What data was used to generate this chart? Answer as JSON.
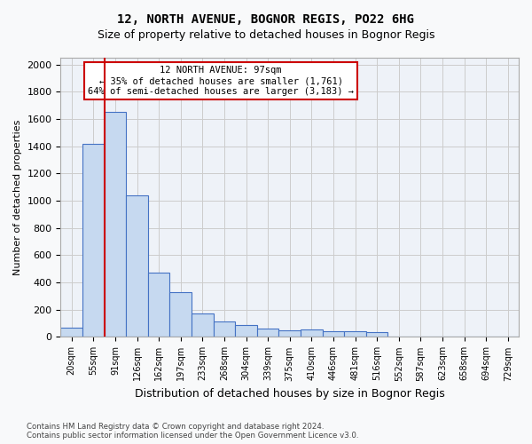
{
  "title_line1": "12, NORTH AVENUE, BOGNOR REGIS, PO22 6HG",
  "title_line2": "Size of property relative to detached houses in Bognor Regis",
  "xlabel": "Distribution of detached houses by size in Bognor Regis",
  "ylabel": "Number of detached properties",
  "footnote": "Contains HM Land Registry data © Crown copyright and database right 2024.\nContains public sector information licensed under the Open Government Licence v3.0.",
  "bin_labels": [
    "20sqm",
    "55sqm",
    "91sqm",
    "126sqm",
    "162sqm",
    "197sqm",
    "233sqm",
    "268sqm",
    "304sqm",
    "339sqm",
    "375sqm",
    "410sqm",
    "446sqm",
    "481sqm",
    "516sqm",
    "552sqm",
    "587sqm",
    "623sqm",
    "658sqm",
    "694sqm",
    "729sqm"
  ],
  "bar_heights": [
    70,
    1420,
    1650,
    1040,
    470,
    330,
    175,
    115,
    90,
    60,
    50,
    55,
    45,
    40,
    35,
    0,
    0,
    0,
    0,
    0,
    0
  ],
  "bar_color": "#c6d9f0",
  "bar_edge_color": "#4472c4",
  "grid_color": "#cccccc",
  "bg_color": "#eef2f8",
  "annotation_text": "12 NORTH AVENUE: 97sqm\n← 35% of detached houses are smaller (1,761)\n64% of semi-detached houses are larger (3,183) →",
  "vline_x_index": 2,
  "vline_color": "#cc0000",
  "annotation_box_color": "#cc0000",
  "ylim": [
    0,
    2050
  ],
  "yticks": [
    0,
    200,
    400,
    600,
    800,
    1000,
    1200,
    1400,
    1600,
    1800,
    2000
  ]
}
